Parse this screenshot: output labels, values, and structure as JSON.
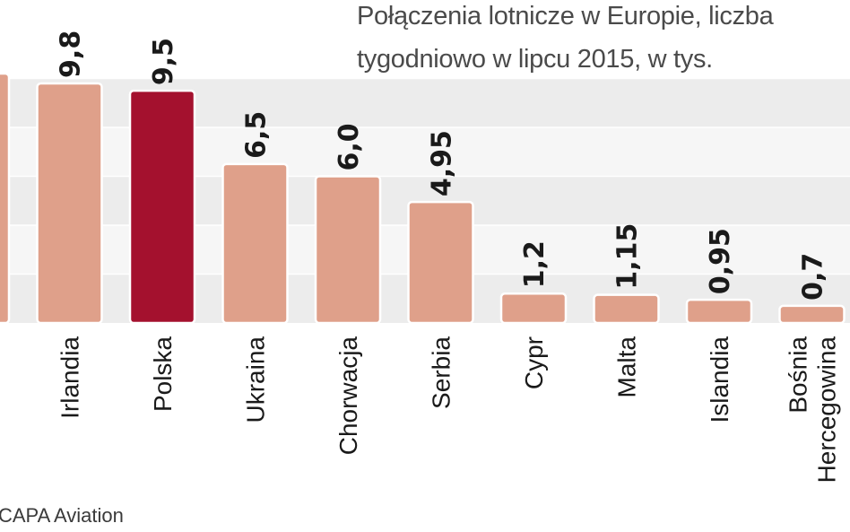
{
  "title_line_1": "Połączenia lotnicze w Europie, liczba",
  "title_line_2": "tygodniowo w lipcu 2015, w tys.",
  "source": "CAPA Aviation",
  "colors": {
    "bar": "#dfa08a",
    "bar_highlight": "#a4112e",
    "bar_outline": "#ffffff",
    "plot_band_a": "#ececec",
    "plot_band_b": "#f6f6f6",
    "gridline": "#ffffff",
    "text": "#1a1a1a"
  },
  "chart_data": {
    "type": "bar",
    "title": "Połączenia lotnicze w Europie, liczba tygodniowo w lipcu 2015, w tys.",
    "categories": [
      "",
      "Irlandia",
      "Polska",
      "Ukraina",
      "Chorwacja",
      "Serbia",
      "Cypr",
      "Malta",
      "Islandia",
      "Bośnia Hercegowina"
    ],
    "category_lines": [
      [
        ""
      ],
      [
        "Irlandia"
      ],
      [
        "Polska"
      ],
      [
        "Ukraina"
      ],
      [
        "Chorwacja"
      ],
      [
        "Serbia"
      ],
      [
        "Cypr"
      ],
      [
        "Malta"
      ],
      [
        "Islandia"
      ],
      [
        "Bośnia",
        "Hercegowina"
      ]
    ],
    "values": [
      10.2,
      9.8,
      9.5,
      6.5,
      6.0,
      4.95,
      1.2,
      1.15,
      0.95,
      0.7
    ],
    "value_labels": [
      "",
      "9,8",
      "9,5",
      "6,5",
      "6,0",
      "4,95",
      "1,2",
      "1,15",
      "0,95",
      "0,7"
    ],
    "highlight_index": 2,
    "xlabel": "",
    "ylabel": "",
    "ylim": [
      0,
      10.5
    ],
    "grid": true,
    "legend": "none"
  }
}
